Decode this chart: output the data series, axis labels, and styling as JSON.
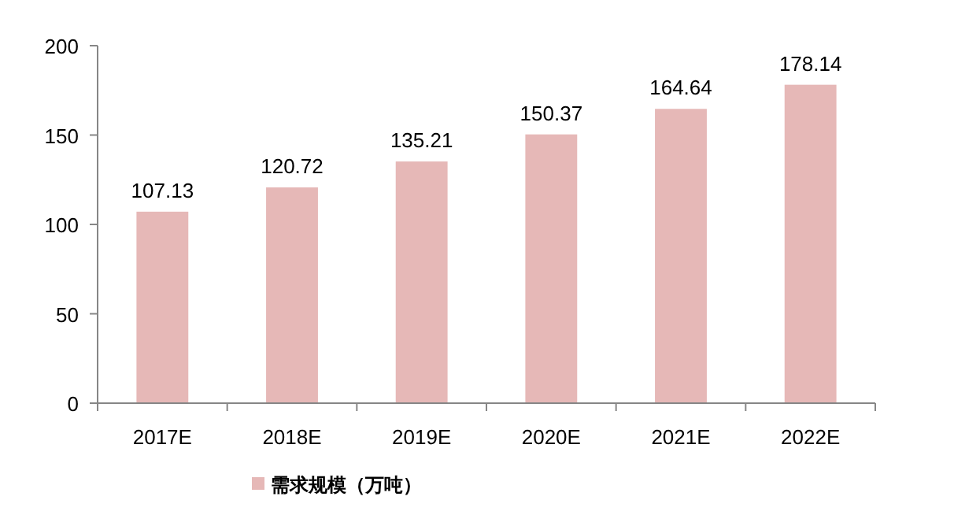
{
  "chart_data": {
    "type": "bar",
    "categories": [
      "2017E",
      "2018E",
      "2019E",
      "2020E",
      "2021E",
      "2022E"
    ],
    "series": [
      {
        "name": "需求规模（万吨）",
        "color": "#e6b8b7",
        "values": [
          107.13,
          120.72,
          135.21,
          150.37,
          164.64,
          178.14
        ]
      }
    ],
    "ylim": [
      0,
      200
    ],
    "yticks": [
      0,
      50,
      100,
      150,
      200
    ],
    "data_labels": true,
    "legend": "bottom",
    "grid": false
  }
}
